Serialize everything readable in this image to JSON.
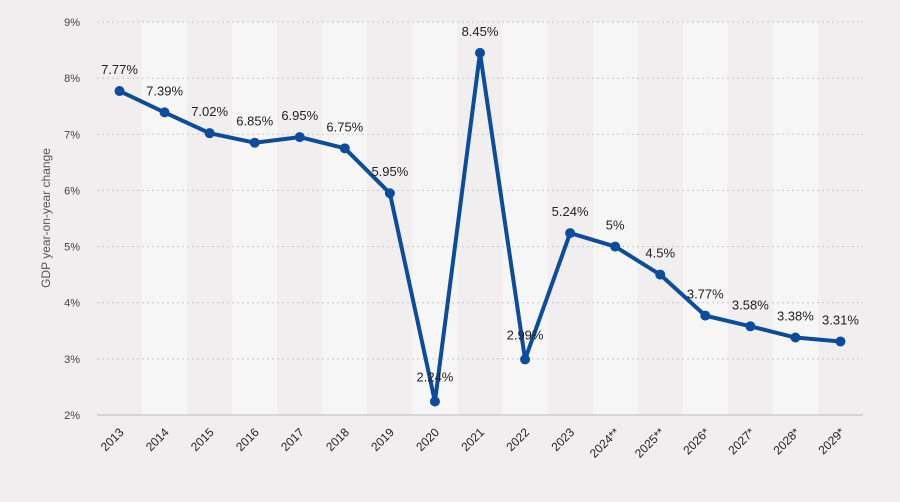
{
  "chart_data": {
    "type": "line",
    "title": "",
    "xlabel": "",
    "ylabel": "GDP year-on-year change",
    "categories": [
      "2013",
      "2014",
      "2015",
      "2016",
      "2017",
      "2018",
      "2019",
      "2020",
      "2021",
      "2022",
      "2023",
      "2024**",
      "2025**",
      "2026*",
      "2027*",
      "2028*",
      "2029*"
    ],
    "series": [
      {
        "values": [
          7.77,
          7.39,
          7.02,
          6.85,
          6.95,
          6.75,
          5.95,
          2.24,
          8.45,
          2.99,
          5.24,
          5,
          4.5,
          3.77,
          3.58,
          3.38,
          3.31
        ],
        "labels": [
          "7.77%",
          "7.39%",
          "7.02%",
          "6.85%",
          "6.95%",
          "6.75%",
          "5.95%",
          "2.24%",
          "8.45%",
          "2.99%",
          "5.24%",
          "5%",
          "4.5%",
          "3.77%",
          "3.58%",
          "3.38%",
          "3.31%"
        ]
      }
    ],
    "ylim": [
      2,
      9
    ],
    "yticks": [
      "2%",
      "3%",
      "4%",
      "5%",
      "6%",
      "7%",
      "8%",
      "9%"
    ],
    "grid": true,
    "line_color": "#0d4c9c",
    "band_color": "#f7f6f6",
    "background_color": "#f0eeee"
  }
}
